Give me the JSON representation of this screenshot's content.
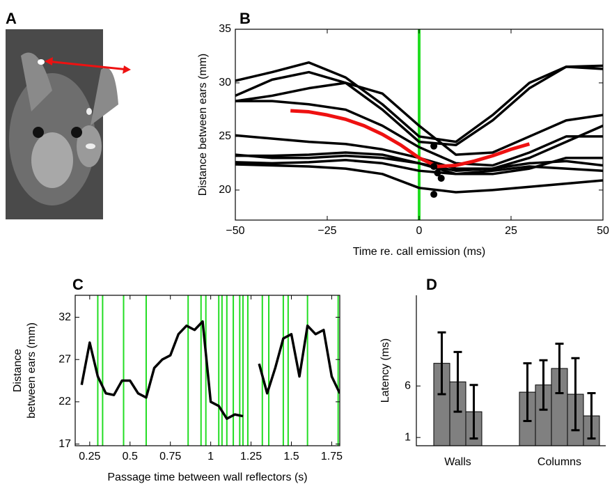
{
  "photo_label": "A",
  "chart_data": [
    {
      "type": "line",
      "label": "B",
      "xlabel": "Time re. call emission (ms)",
      "ylabel": "Distance between ears (mm)",
      "xlim": [
        -50,
        50
      ],
      "xticks": [
        {
          "value": -50,
          "label": "−50"
        },
        {
          "value": -25,
          "label": "−25"
        },
        0,
        25,
        50
      ],
      "ylim": [
        17.2,
        35
      ],
      "yticks": [
        20,
        25,
        30,
        35
      ],
      "vlines": {
        "color": "#22dd22",
        "x": [
          0
        ]
      },
      "series": [
        {
          "color": "#000000",
          "x": [
            -50,
            -40,
            -30,
            -20,
            -10,
            0,
            10,
            20,
            30,
            40,
            50
          ],
          "values": [
            30.2,
            31,
            31.9,
            30.5,
            28,
            25,
            24.5,
            27,
            30,
            31.5,
            31.3
          ]
        },
        {
          "color": "#000000",
          "x": [
            -50,
            -40,
            -30,
            -20,
            -10,
            0,
            10,
            20,
            30,
            40,
            50
          ],
          "values": [
            28.8,
            30.3,
            31,
            30,
            27.5,
            24.5,
            24.2,
            26.5,
            29.5,
            31.5,
            31.6
          ]
        },
        {
          "color": "#000000",
          "x": [
            -50,
            -40,
            -30,
            -20,
            -10,
            0,
            10,
            20,
            30,
            40,
            50
          ],
          "values": [
            28.3,
            28.8,
            29.5,
            30,
            29,
            26,
            23.3,
            23.5,
            25,
            26.5,
            27
          ]
        },
        {
          "color": "#000000",
          "x": [
            -50,
            -40,
            -30,
            -20,
            -10,
            0,
            10,
            20,
            30,
            40,
            50
          ],
          "values": [
            28.3,
            28.3,
            28,
            27.5,
            26,
            24,
            22.5,
            22.3,
            23.5,
            25,
            25
          ]
        },
        {
          "color": "#000000",
          "x": [
            -50,
            -40,
            -30,
            -20,
            -10,
            0,
            10,
            20,
            30,
            40,
            50
          ],
          "values": [
            25.1,
            24.8,
            24.5,
            24.3,
            23.8,
            23,
            22,
            22,
            23,
            24.5,
            26
          ]
        },
        {
          "color": "#000000",
          "x": [
            -50,
            -40,
            -30,
            -20,
            -10,
            0,
            10,
            20,
            30,
            40,
            50
          ],
          "values": [
            23.3,
            23,
            23,
            23.2,
            23,
            22.5,
            21.8,
            22,
            22.5,
            22.7,
            22.3
          ]
        },
        {
          "color": "#000000",
          "x": [
            -50,
            -40,
            -30,
            -20,
            -10,
            0,
            10,
            20,
            30,
            40,
            50
          ],
          "values": [
            23.2,
            23.2,
            23.3,
            23.5,
            23.3,
            22.5,
            21.5,
            21.5,
            22,
            23,
            23
          ]
        },
        {
          "color": "#000000",
          "x": [
            -50,
            -40,
            -30,
            -20,
            -10,
            0,
            10,
            20,
            30,
            40,
            50
          ],
          "values": [
            22.6,
            22.5,
            22.6,
            22.8,
            22.5,
            21.8,
            21.5,
            21.8,
            22.2,
            22,
            21.8
          ]
        },
        {
          "color": "#000000",
          "x": [
            -50,
            -40,
            -30,
            -20,
            -10,
            0,
            10,
            20,
            30,
            40,
            50
          ],
          "values": [
            22.4,
            22.3,
            22.2,
            22,
            21.5,
            20.2,
            19.8,
            20,
            20.3,
            20.6,
            20.9
          ]
        },
        {
          "color": "#ee1111",
          "x": [
            -35,
            -30,
            -25,
            -20,
            -15,
            -10,
            -5,
            0,
            5,
            10,
            15,
            20,
            25,
            30
          ],
          "values": [
            27.4,
            27.3,
            27,
            26.6,
            26,
            25.2,
            24.2,
            23,
            22.2,
            22.3,
            22.7,
            23.2,
            23.8,
            24.3
          ]
        }
      ],
      "markers": {
        "color": "#000000",
        "x": [
          4,
          4,
          5,
          6,
          4
        ],
        "y": [
          24.1,
          22.2,
          21.6,
          21.1,
          19.6
        ]
      }
    },
    {
      "type": "line",
      "label": "C",
      "xlabel": "Passage time between wall reflectors (s)",
      "ylabel": [
        "Distance",
        "between ears (mm)"
      ],
      "xlim": [
        0.16,
        1.8
      ],
      "xticks": [
        0.25,
        0.5,
        0.75,
        1,
        1.25,
        1.5,
        1.75
      ],
      "ylim": [
        16.8,
        34.6
      ],
      "yticks": [
        17,
        22,
        27,
        32
      ],
      "vlines": {
        "color": "#22dd22",
        "x": [
          0.3,
          0.33,
          0.46,
          0.6,
          0.86,
          0.94,
          0.97,
          1.05,
          1.07,
          1.1,
          1.14,
          1.18,
          1.2,
          1.23,
          1.32,
          1.36,
          1.45,
          1.48,
          1.6,
          1.79
        ]
      },
      "series": [
        {
          "color": "#000000",
          "x": [
            0.2,
            0.25,
            0.3,
            0.35,
            0.4,
            0.45,
            0.5,
            0.55,
            0.6,
            0.65,
            0.7,
            0.75,
            0.8,
            0.85,
            0.9,
            0.95,
            1,
            1.05,
            1.1,
            1.15,
            1.2,
            1.25,
            1.3,
            1.35,
            1.4,
            1.45,
            1.5,
            1.55,
            1.6,
            1.65,
            1.7,
            1.75,
            1.8
          ],
          "values": [
            24,
            29,
            25,
            23,
            22.8,
            24.5,
            24.5,
            23,
            22.5,
            26,
            27,
            27.5,
            30,
            31,
            30.5,
            31.5,
            22,
            21.5,
            20,
            20.5,
            20.3,
            null,
            26.5,
            23,
            26,
            29.5,
            30,
            25,
            31,
            30,
            30.5,
            25,
            23
          ]
        }
      ]
    },
    {
      "type": "bar",
      "label": "D",
      "ylabel": "Latency (ms)",
      "ylim": [
        0.2,
        14.8
      ],
      "yticks": [
        1,
        6
      ],
      "color": "#808080",
      "groups": [
        {
          "category": "Walls",
          "values": [
            8.2,
            6.4,
            3.5
          ],
          "errors": [
            3,
            2.9,
            2.6
          ]
        },
        {
          "category": "Columns",
          "values": [
            5.4,
            6.1,
            7.7,
            5.2,
            3.1
          ],
          "errors": [
            2.8,
            2.4,
            2.4,
            3.5,
            2.2
          ]
        }
      ]
    }
  ]
}
